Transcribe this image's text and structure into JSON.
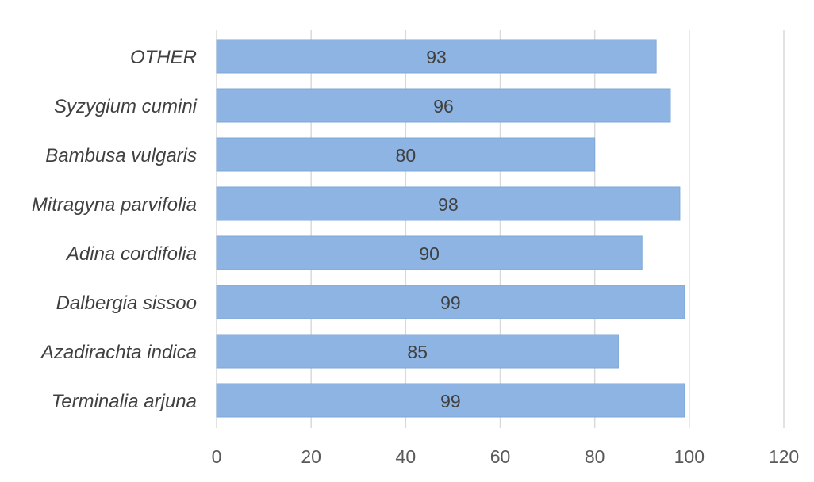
{
  "chart_data": {
    "type": "bar",
    "orientation": "horizontal",
    "categories": [
      "OTHER",
      "Syzygium cumini",
      "Bambusa vulgaris",
      "Mitragyna parvifolia",
      "Adina cordifolia",
      "Dalbergia sissoo",
      "Azadirachta indica",
      "Terminalia arjuna"
    ],
    "values": [
      93,
      96,
      80,
      98,
      90,
      99,
      85,
      99
    ],
    "xlim": [
      0,
      120
    ],
    "xticks": [
      0,
      20,
      40,
      60,
      80,
      100,
      120
    ],
    "title": "",
    "xlabel": "",
    "ylabel": "",
    "grid": "vertical",
    "legend": "none",
    "bar_color": "#8db4e2",
    "data_labels": true
  }
}
